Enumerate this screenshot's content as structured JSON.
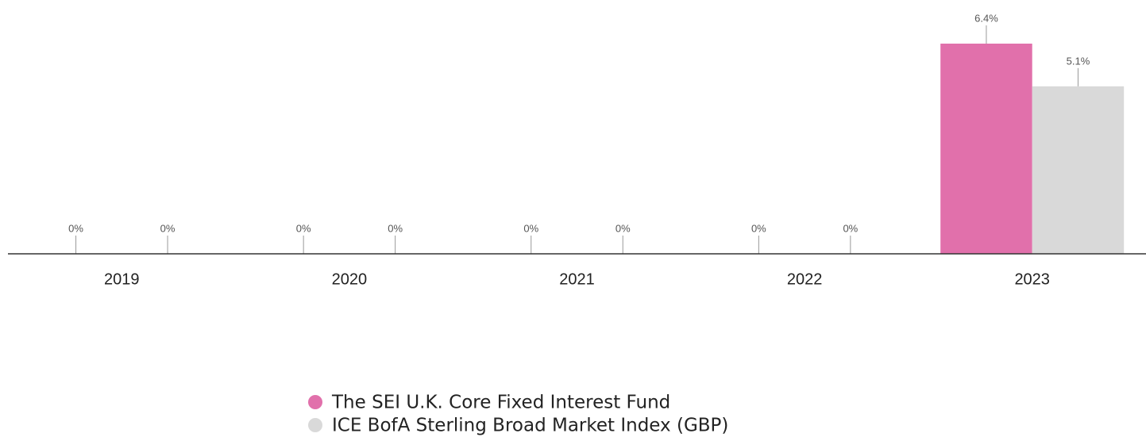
{
  "chart_data": {
    "type": "bar",
    "categories": [
      "2019",
      "2020",
      "2021",
      "2022",
      "2023"
    ],
    "series": [
      {
        "name": "The SEI U.K. Core Fixed Interest Fund",
        "color": "#e170ab",
        "values": [
          0,
          0,
          0,
          0,
          6.4
        ],
        "value_labels": [
          "0%",
          "0%",
          "0%",
          "0%",
          "6.4%"
        ]
      },
      {
        "name": "ICE BofA Sterling Broad Market Index (GBP)",
        "color": "#d9d9d9",
        "values": [
          0,
          0,
          0,
          0,
          5.1
        ],
        "value_labels": [
          "0%",
          "0%",
          "0%",
          "0%",
          "5.1%"
        ]
      }
    ]
  }
}
